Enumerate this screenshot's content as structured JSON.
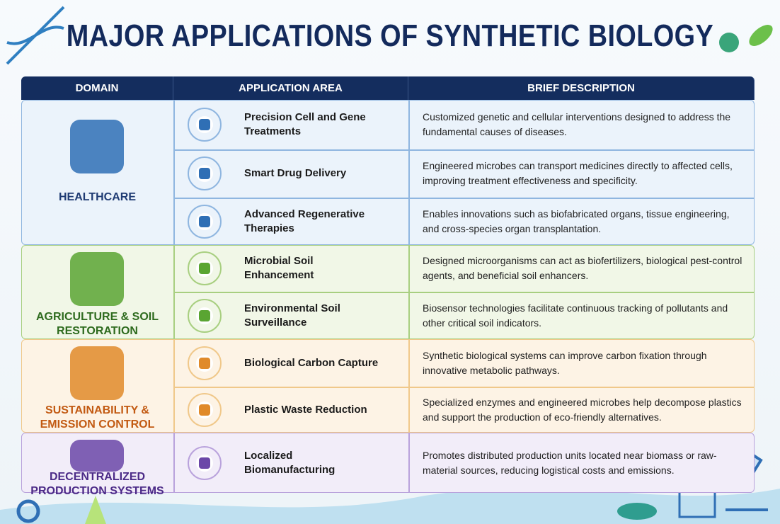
{
  "title": "MAJOR APPLICATIONS OF SYNTHETIC BIOLOGY",
  "table": {
    "headers": [
      "DOMAIN",
      "APPLICATION AREA",
      "BRIEF DESCRIPTION"
    ],
    "groups": [
      {
        "domain": "HEALTHCARE",
        "rows": [
          {
            "application": "Precision Cell and Gene Treatments",
            "description": "Customized genetic and cellular interventions designed to address the fundamental causes of diseases."
          },
          {
            "application": "Smart Drug Delivery",
            "description": "Engineered microbes can transport medicines directly to affected cells, improving treatment effectiveness and specificity."
          },
          {
            "application": "Advanced Regenerative Therapies",
            "description": "Enables innovations such as biofabricated organs, tissue engineering, and cross-species organ transplantation."
          }
        ]
      },
      {
        "domain": "AGRICULTURE & SOIL RESTORATION",
        "rows": [
          {
            "application": "Microbial Soil Enhancement",
            "description": "Designed microorganisms can act as biofertilizers, biological pest-control agents, and beneficial soil enhancers."
          },
          {
            "application": "Environmental Soil Surveillance",
            "description": "Biosensor technologies facilitate continuous tracking of pollutants and other critical soil indicators."
          }
        ]
      },
      {
        "domain": "SUSTAINABILITY & EMISSION CONTROL",
        "rows": [
          {
            "application": "Biological Carbon Capture",
            "description": "Synthetic biological systems can improve carbon fixation through innovative metabolic pathways."
          },
          {
            "application": "Plastic Waste Reduction",
            "description": "Specialized enzymes and engineered microbes help decompose plastics and support the production of eco-friendly alternatives."
          }
        ]
      },
      {
        "domain": "DECENTRALIZED PRODUCTION SYSTEMS",
        "rows": [
          {
            "application": "Localized Biomanufacturing",
            "description": "Promotes distributed production units located near biomass or raw-material sources, reducing logistical costs and emissions."
          }
        ]
      }
    ]
  }
}
